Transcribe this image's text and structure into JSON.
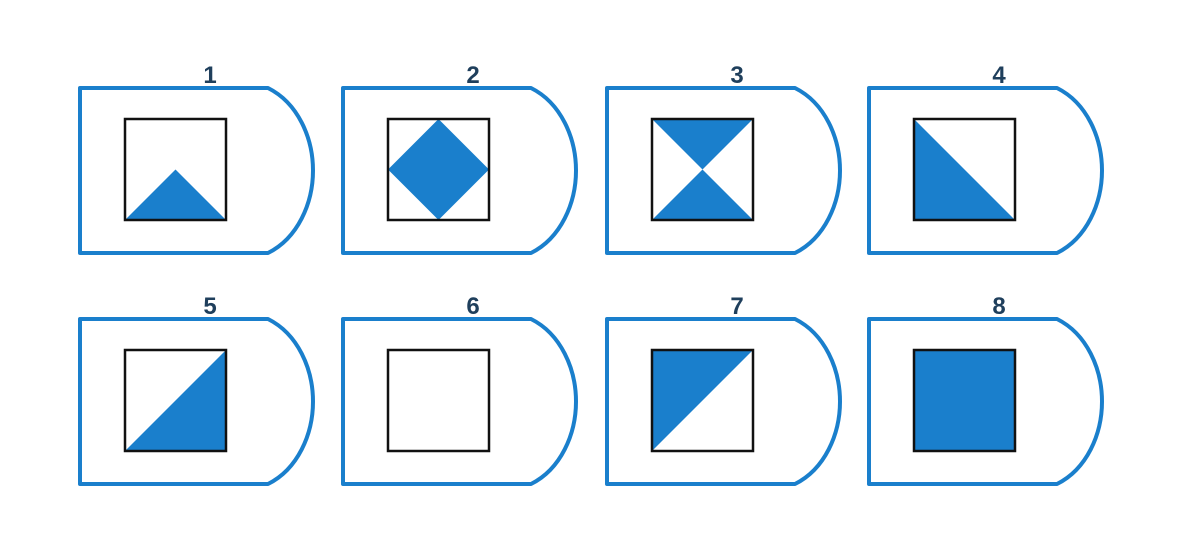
{
  "colors": {
    "accent": "#1a7fcc",
    "number": "#1f3f5c",
    "background": "#ffffff"
  },
  "cards": [
    {
      "number": "1",
      "pattern": "bottom-triangle"
    },
    {
      "number": "2",
      "pattern": "diamond"
    },
    {
      "number": "3",
      "pattern": "hourglass"
    },
    {
      "number": "4",
      "pattern": "lower-left-triangle"
    },
    {
      "number": "5",
      "pattern": "lower-right-triangle"
    },
    {
      "number": "6",
      "pattern": "empty"
    },
    {
      "number": "7",
      "pattern": "upper-left-triangle"
    },
    {
      "number": "8",
      "pattern": "full"
    }
  ]
}
